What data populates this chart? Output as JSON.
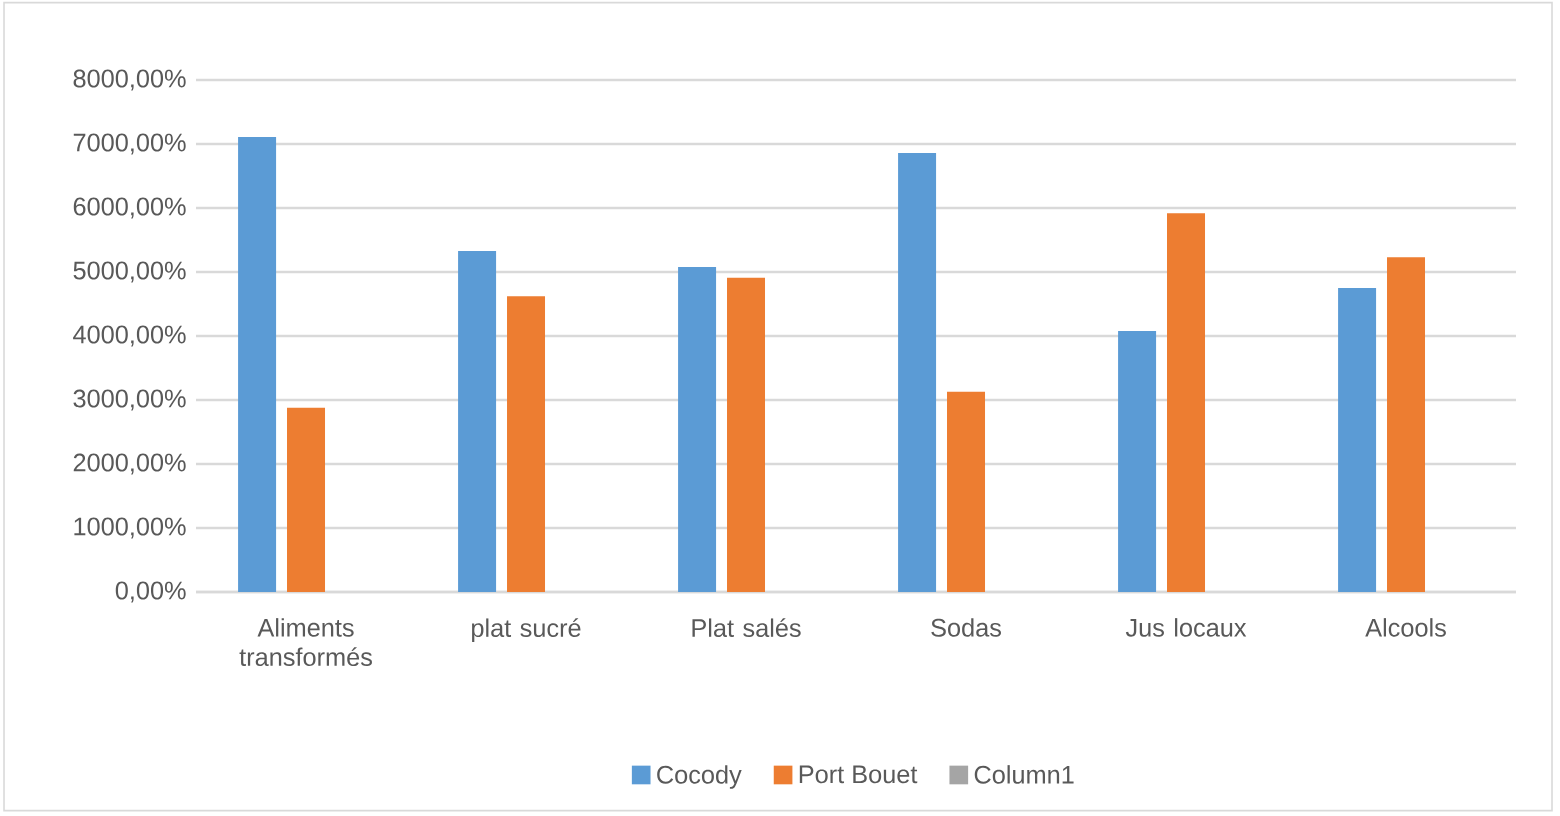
{
  "chart_data": {
    "type": "bar",
    "categories": [
      "Aliments transformés",
      "plat sucré",
      "Plat salés",
      "Sodas",
      "Jus locaux",
      "Alcools"
    ],
    "series": [
      {
        "name": "Cocody",
        "color": "#5b9bd5",
        "values": [
          7110,
          5330,
          5080,
          6860,
          4080,
          4750
        ]
      },
      {
        "name": "Port Bouet",
        "color": "#ed7d31",
        "values": [
          2880,
          4620,
          4910,
          3130,
          5920,
          5230
        ]
      },
      {
        "name": "Column1",
        "color": "#a5a5a5",
        "values": [
          null,
          null,
          null,
          null,
          null,
          null
        ]
      }
    ],
    "ylim": [
      0,
      8000
    ],
    "yticks": [
      {
        "value": 0,
        "label": "0,00%"
      },
      {
        "value": 1000,
        "label": "1000,00%"
      },
      {
        "value": 2000,
        "label": "2000,00%"
      },
      {
        "value": 3000,
        "label": "3000,00%"
      },
      {
        "value": 4000,
        "label": "4000,00%"
      },
      {
        "value": 5000,
        "label": "5000,00%"
      },
      {
        "value": 6000,
        "label": "6000,00%"
      },
      {
        "value": 7000,
        "label": "7000,00%"
      },
      {
        "value": 8000,
        "label": "8000,00%"
      }
    ],
    "grid": "y",
    "legend": "bottom"
  }
}
